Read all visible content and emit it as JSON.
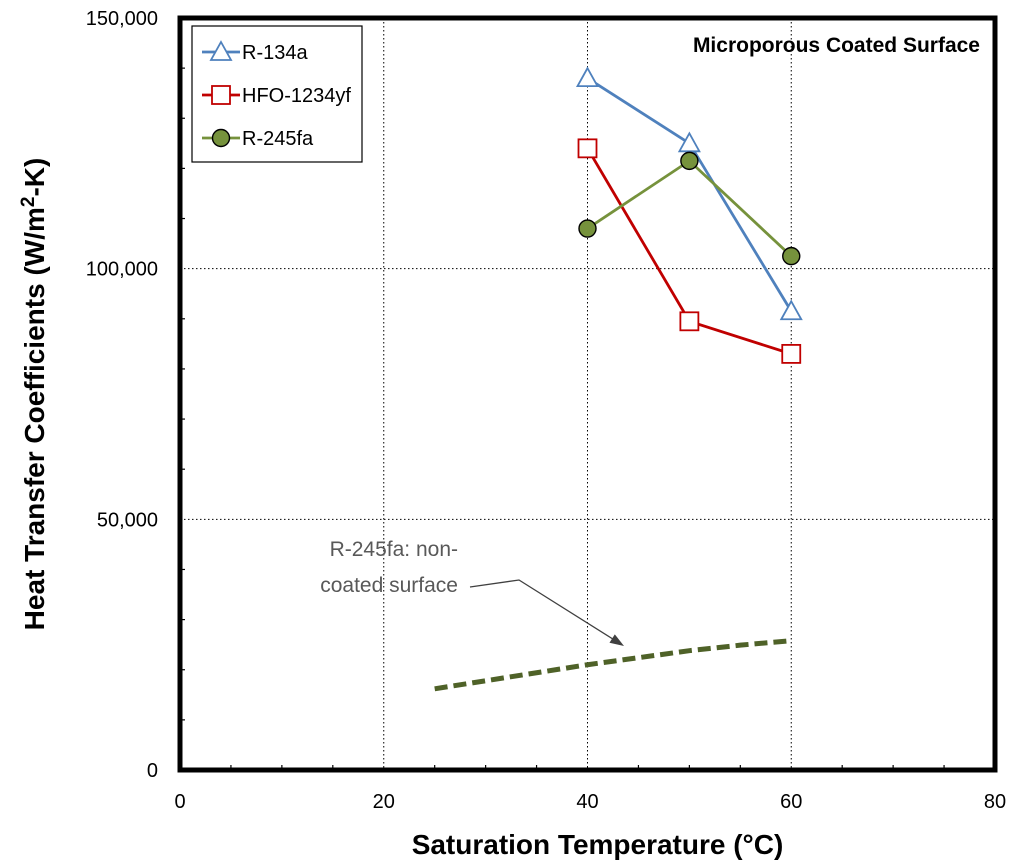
{
  "chart_data": {
    "type": "line",
    "title": "Microporous Coated Surface",
    "xlabel": "Saturation Temperature (°C)",
    "ylabel_parts": [
      "Heat Transfer Coefficients (W/m",
      "2",
      "-K)"
    ],
    "xlim": [
      0,
      80
    ],
    "ylim": [
      0,
      150000
    ],
    "x_ticks": [
      0,
      20,
      40,
      60,
      80
    ],
    "x_tick_labels": [
      "0",
      "20",
      "40",
      "60",
      "80"
    ],
    "y_ticks": [
      0,
      50000,
      100000,
      150000
    ],
    "y_tick_labels": [
      "0",
      "50,000",
      "100,000",
      "150,000"
    ],
    "grid": "dotted",
    "legend_position": "top-left",
    "series": [
      {
        "name": "R-134a",
        "marker": "triangle",
        "color": "#4f81bd",
        "x": [
          40,
          50,
          60
        ],
        "y": [
          138000,
          125000,
          91500
        ]
      },
      {
        "name": "HFO-1234yf",
        "marker": "square",
        "color": "#c00000",
        "x": [
          40,
          50,
          60
        ],
        "y": [
          124000,
          89500,
          83000
        ]
      },
      {
        "name": "R-245fa",
        "marker": "circle",
        "color": "#76923c",
        "x": [
          40,
          50,
          60
        ],
        "y": [
          108000,
          121500,
          102500
        ]
      }
    ],
    "reference_line": {
      "label_lines": [
        "R-245fa: non-",
        "coated surface"
      ],
      "color": "#4f6228",
      "style": "dashed",
      "x": [
        25,
        30,
        35,
        40,
        45,
        50,
        55,
        60
      ],
      "y": [
        16200,
        17800,
        19400,
        21000,
        22400,
        23800,
        24900,
        25800
      ]
    }
  }
}
